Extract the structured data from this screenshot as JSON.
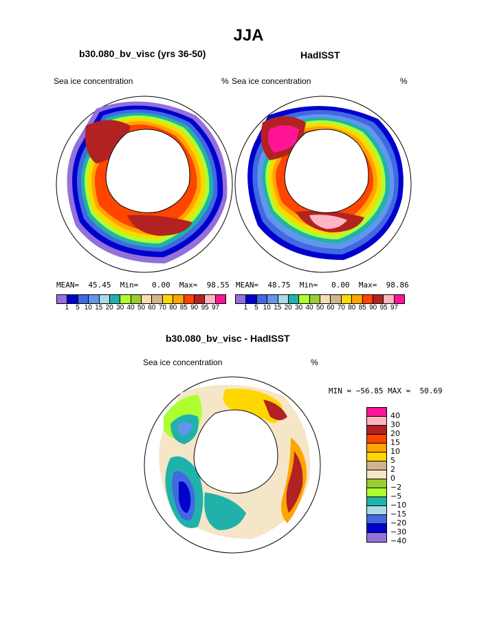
{
  "title": "JJA",
  "panels": [
    {
      "heading": "b30.080_bv_visc (yrs 36-50)",
      "variable": "Sea ice concentration",
      "units": "%",
      "stats": {
        "mean_label": "MEAN=",
        "mean": "45.45",
        "min_label": "Min=",
        "min": "0.00",
        "max_label": "Max=",
        "max": "98.55"
      }
    },
    {
      "heading": "HadISST",
      "variable": "Sea ice concentration",
      "units": "%",
      "stats": {
        "mean_label": "MEAN=",
        "mean": "48.75",
        "min_label": "Min=",
        "min": "0.00",
        "max_label": "Max=",
        "max": "98.86"
      }
    }
  ],
  "diff_panel": {
    "heading": "b30.080_bv_visc - HadISST",
    "variable": "Sea ice concentration",
    "units": "%",
    "minmax": "MIN = −56.85 MAX =  50.69"
  },
  "abs_colorbar": {
    "tick_labels": [
      "1",
      "5",
      "10",
      "15",
      "20",
      "30",
      "40",
      "50",
      "60",
      "70",
      "80",
      "85",
      "90",
      "95",
      "97"
    ],
    "colors": [
      "#9370DB",
      "#0000CD",
      "#4169E1",
      "#6495ED",
      "#ADD8E6",
      "#20B2AA",
      "#ADFF2F",
      "#9ACD32",
      "#F5DEB3",
      "#D2B48C",
      "#FFD700",
      "#FFA500",
      "#FF4500",
      "#B22222",
      "#FFB6C1",
      "#FF1493"
    ]
  },
  "diff_colorbar": {
    "tick_labels": [
      "40",
      "30",
      "20",
      "15",
      "10",
      "5",
      "2",
      "0",
      "−2",
      "−5",
      "−10",
      "−15",
      "−20",
      "−30",
      "−40"
    ],
    "colors": [
      "#FF1493",
      "#FFB6C1",
      "#B22222",
      "#FF4500",
      "#FFA500",
      "#FFD700",
      "#D2B48C",
      "#F5E6C8",
      "#9ACD32",
      "#ADFF2F",
      "#20B2AA",
      "#ADD8E6",
      "#4169E1",
      "#0000CD",
      "#9370DB"
    ]
  }
}
